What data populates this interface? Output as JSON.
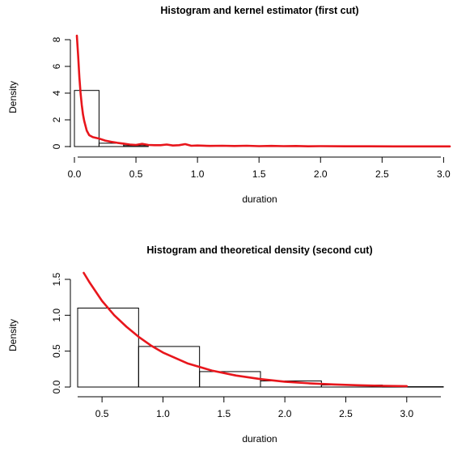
{
  "chart_data": [
    {
      "type": "bar",
      "title": "Histogram and kernel estimator (first cut)",
      "xlabel": "duration",
      "ylabel": "Density",
      "xlim": [
        0,
        3.05
      ],
      "ylim": [
        0,
        8
      ],
      "x_ticks": [
        "0.0",
        "0.5",
        "1.0",
        "1.5",
        "2.0",
        "2.5",
        "3.0"
      ],
      "x_tick_values": [
        0,
        0.5,
        1.0,
        1.5,
        2.0,
        2.5,
        3.0
      ],
      "y_ticks": [
        "0",
        "2",
        "4",
        "6",
        "8"
      ],
      "y_tick_values": [
        0,
        2,
        4,
        6,
        8
      ],
      "histogram": {
        "bin_edges": [
          0.0,
          0.2,
          0.4,
          0.6
        ],
        "density": [
          4.2,
          0.25,
          0.07
        ]
      },
      "curve": {
        "name": "kernel estimator",
        "color": "#e8161c",
        "x": [
          0.02,
          0.03,
          0.04,
          0.05,
          0.06,
          0.07,
          0.08,
          0.1,
          0.12,
          0.15,
          0.2,
          0.25,
          0.3,
          0.35,
          0.4,
          0.45,
          0.5,
          0.55,
          0.6,
          0.65,
          0.7,
          0.75,
          0.8,
          0.85,
          0.9,
          0.95,
          1.0,
          1.1,
          1.2,
          1.3,
          1.4,
          1.5,
          1.6,
          1.7,
          1.8,
          1.9,
          2.0,
          2.2,
          2.4,
          2.6,
          2.8,
          3.0,
          3.05
        ],
        "y": [
          8.3,
          6.8,
          5.2,
          4.0,
          3.1,
          2.4,
          1.9,
          1.2,
          0.85,
          0.7,
          0.6,
          0.45,
          0.35,
          0.28,
          0.22,
          0.15,
          0.12,
          0.2,
          0.12,
          0.1,
          0.1,
          0.15,
          0.08,
          0.1,
          0.18,
          0.06,
          0.08,
          0.05,
          0.06,
          0.04,
          0.06,
          0.03,
          0.05,
          0.03,
          0.04,
          0.02,
          0.03,
          0.02,
          0.02,
          0.01,
          0.01,
          0.01,
          0.01
        ]
      }
    },
    {
      "type": "bar",
      "title": "Histogram and theoretical density (second cut)",
      "xlabel": "duration",
      "ylabel": "Density",
      "xlim": [
        0.3,
        3.3
      ],
      "ylim": [
        0,
        1.5
      ],
      "x_ticks": [
        "0.5",
        "1.0",
        "1.5",
        "2.0",
        "2.5",
        "3.0"
      ],
      "x_tick_values": [
        0.5,
        1.0,
        1.5,
        2.0,
        2.5,
        3.0
      ],
      "y_ticks": [
        "0.0",
        "0.5",
        "1.0",
        "1.5"
      ],
      "y_tick_values": [
        0,
        0.5,
        1.0,
        1.5
      ],
      "histogram": {
        "bin_edges": [
          0.3,
          0.8,
          1.3,
          1.8,
          2.3,
          2.8,
          3.3
        ],
        "density": [
          1.1,
          0.565,
          0.215,
          0.085,
          0.028,
          0.005
        ]
      },
      "curve": {
        "name": "theoretical density",
        "color": "#e8161c",
        "x": [
          0.35,
          0.4,
          0.5,
          0.6,
          0.7,
          0.8,
          0.9,
          1.0,
          1.2,
          1.4,
          1.6,
          1.8,
          2.0,
          2.2,
          2.4,
          2.6,
          2.8,
          3.0
        ],
        "y": [
          1.6,
          1.45,
          1.2,
          1.0,
          0.84,
          0.7,
          0.58,
          0.48,
          0.33,
          0.23,
          0.16,
          0.11,
          0.075,
          0.052,
          0.036,
          0.025,
          0.017,
          0.012
        ]
      }
    }
  ]
}
